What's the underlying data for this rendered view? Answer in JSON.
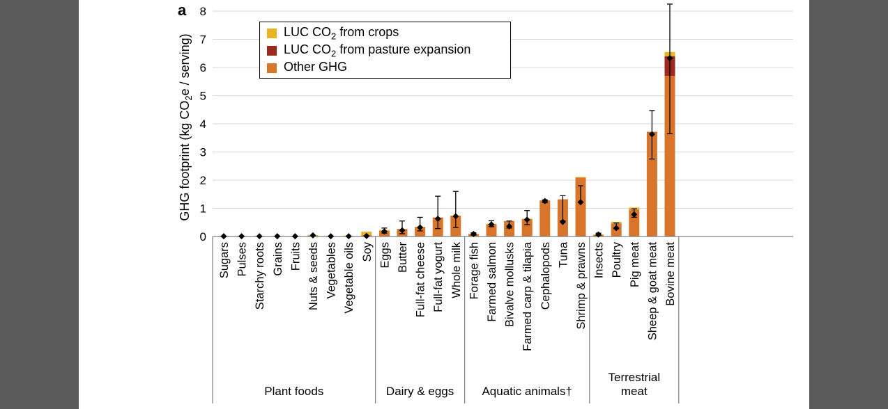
{
  "panel_label": "a",
  "chart_data": {
    "type": "bar",
    "stacked": true,
    "ylabel": "GHG footprint (kg CO2e / serving)",
    "ylim": [
      0,
      8
    ],
    "yticks": [
      0,
      1,
      2,
      3,
      4,
      5,
      6,
      7,
      8
    ],
    "grid": true,
    "legend_position": "top-left",
    "colors": {
      "luc_crops": "#e8b422",
      "luc_pasture": "#9b2a1e",
      "other": "#d9752b",
      "marker": "#000000",
      "grid": "#d9d9d9",
      "axis": "#808080"
    },
    "legend": [
      {
        "key": "luc_crops",
        "label_pre": "LUC CO",
        "label_sub": "2",
        "label_post": " from crops"
      },
      {
        "key": "luc_pasture",
        "label_pre": "LUC CO",
        "label_sub": "2",
        "label_post": " from pasture expansion"
      },
      {
        "key": "other",
        "label_pre": "Other GHG",
        "label_sub": "",
        "label_post": ""
      }
    ],
    "groups": [
      {
        "name": "Plant foods",
        "items": [
          {
            "label": "Sugars",
            "other": 0.02,
            "luc_pasture": 0,
            "luc_crops": 0,
            "median": 0.01,
            "err_low": null,
            "err_high": null
          },
          {
            "label": "Pulses",
            "other": 0.02,
            "luc_pasture": 0,
            "luc_crops": 0,
            "median": 0.01,
            "err_low": null,
            "err_high": null
          },
          {
            "label": "Starchy roots",
            "other": 0.02,
            "luc_pasture": 0,
            "luc_crops": 0,
            "median": 0.01,
            "err_low": null,
            "err_high": null
          },
          {
            "label": "Grains",
            "other": 0.02,
            "luc_pasture": 0,
            "luc_crops": 0,
            "median": 0.01,
            "err_low": null,
            "err_high": null
          },
          {
            "label": "Fruits",
            "other": 0.02,
            "luc_pasture": 0,
            "luc_crops": 0,
            "median": 0.01,
            "err_low": null,
            "err_high": null
          },
          {
            "label": "Nuts & seeds",
            "other": 0.04,
            "luc_pasture": 0,
            "luc_crops": 0.01,
            "median": 0.04,
            "err_low": null,
            "err_high": null
          },
          {
            "label": "Vegetables",
            "other": 0.02,
            "luc_pasture": 0,
            "luc_crops": 0,
            "median": 0.01,
            "err_low": null,
            "err_high": null
          },
          {
            "label": "Vegetable oils",
            "other": 0.02,
            "luc_pasture": 0,
            "luc_crops": 0.01,
            "median": 0.01,
            "err_low": null,
            "err_high": null
          },
          {
            "label": "Soy",
            "other": 0.05,
            "luc_pasture": 0,
            "luc_crops": 0.12,
            "median": 0.02,
            "err_low": null,
            "err_high": null
          }
        ]
      },
      {
        "name": "Dairy & eggs",
        "items": [
          {
            "label": "Eggs",
            "other": 0.2,
            "luc_pasture": 0,
            "luc_crops": 0.03,
            "median": 0.18,
            "err_low": 0.12,
            "err_high": 0.3
          },
          {
            "label": "Butter",
            "other": 0.25,
            "luc_pasture": 0.01,
            "luc_crops": 0.01,
            "median": 0.22,
            "err_low": 0.1,
            "err_high": 0.55
          },
          {
            "label": "Full-fat cheese",
            "other": 0.32,
            "luc_pasture": 0.01,
            "luc_crops": 0.01,
            "median": 0.32,
            "err_low": 0.2,
            "err_high": 0.68
          },
          {
            "label": "Full-fat yogurt",
            "other": 0.66,
            "luc_pasture": 0.01,
            "luc_crops": 0.01,
            "median": 0.63,
            "err_low": 0.28,
            "err_high": 1.43
          },
          {
            "label": "Whole milk",
            "other": 0.72,
            "luc_pasture": 0.01,
            "luc_crops": 0.01,
            "median": 0.72,
            "err_low": 0.32,
            "err_high": 1.6
          }
        ]
      },
      {
        "name": "Aquatic animals†",
        "items": [
          {
            "label": "Forage fish",
            "other": 0.09,
            "luc_pasture": 0,
            "luc_crops": 0,
            "median": 0.09,
            "err_low": 0.05,
            "err_high": 0.13
          },
          {
            "label": "Farmed salmon",
            "other": 0.44,
            "luc_pasture": 0,
            "luc_crops": 0.01,
            "median": 0.43,
            "err_low": 0.35,
            "err_high": 0.56
          },
          {
            "label": "Bivalve mollusks",
            "other": 0.55,
            "luc_pasture": 0,
            "luc_crops": 0,
            "median": 0.36,
            "err_low": 0.3,
            "err_high": 0.55
          },
          {
            "label": "Farmed carp & tilapia",
            "other": 0.62,
            "luc_pasture": 0,
            "luc_crops": 0.01,
            "median": 0.6,
            "err_low": 0.42,
            "err_high": 0.92
          },
          {
            "label": "Cephalopods",
            "other": 1.28,
            "luc_pasture": 0,
            "luc_crops": 0,
            "median": 1.26,
            "err_low": 1.2,
            "err_high": 1.3
          },
          {
            "label": "Tuna",
            "other": 1.32,
            "luc_pasture": 0,
            "luc_crops": 0,
            "median": 0.52,
            "err_low": 0.55,
            "err_high": 1.45
          },
          {
            "label": "Shrimp & prawns",
            "other": 2.1,
            "luc_pasture": 0,
            "luc_crops": 0.01,
            "median": 1.22,
            "err_low": 1.22,
            "err_high": 1.8
          }
        ]
      },
      {
        "name": "Terrestrial meat",
        "name_lines": [
          "Terrestrial",
          "meat"
        ],
        "items": [
          {
            "label": "Insects",
            "other": 0.06,
            "luc_pasture": 0,
            "luc_crops": 0.01,
            "median": 0.07,
            "err_low": 0.04,
            "err_high": 0.12
          },
          {
            "label": "Poultry",
            "other": 0.46,
            "luc_pasture": 0,
            "luc_crops": 0.06,
            "median": 0.3,
            "err_low": 0.27,
            "err_high": 0.48
          },
          {
            "label": "Pig meat",
            "other": 0.95,
            "luc_pasture": 0,
            "luc_crops": 0.08,
            "median": 0.78,
            "err_low": 0.68,
            "err_high": 0.98
          },
          {
            "label": "Sheep & goat meat",
            "other": 3.68,
            "luc_pasture": 0.02,
            "luc_crops": 0.02,
            "median": 3.63,
            "err_low": 2.75,
            "err_high": 4.47
          },
          {
            "label": "Bovine meat",
            "other": 5.7,
            "luc_pasture": 0.7,
            "luc_crops": 0.15,
            "median": 6.33,
            "err_low": 3.65,
            "err_high": 8.25
          }
        ]
      }
    ]
  }
}
